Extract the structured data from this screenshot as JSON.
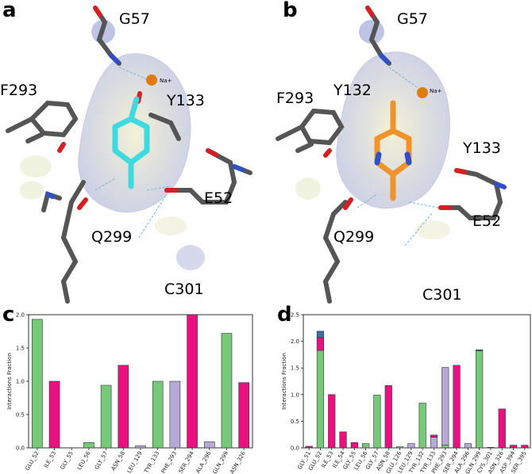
{
  "panels": {
    "a": "a",
    "b": "b",
    "c": "c",
    "d": "d"
  },
  "structure_a": {
    "labels": {
      "g57": "G57",
      "f293": "F293",
      "y133": "Y133",
      "e52": "E52",
      "q299": "Q299",
      "c301": "C301",
      "na": "Na+"
    },
    "ligand_color": "#3fd9e0"
  },
  "structure_b": {
    "labels": {
      "g57": "G57",
      "f293": "F293",
      "y132": "Y132",
      "y133": "Y133",
      "e52": "E52",
      "q299": "Q299",
      "c301": "C301",
      "na": "Na+"
    },
    "ligand_color": "#f0932b"
  },
  "colors": {
    "green": "#77c97a",
    "magenta": "#e8117f",
    "lavender": "#b7a9d6",
    "blue": "#3a6ea5",
    "sodium": "#e07b10"
  },
  "chart_data": [
    {
      "type": "bar",
      "panel": "c",
      "ylabel": "Interactions Fraction",
      "ylim": [
        0,
        2.0
      ],
      "yticks": [
        "0.0",
        "0.5",
        "1.0",
        "1.5",
        "2.0"
      ],
      "categories": [
        "GLU_52",
        "ILE_53",
        "GLY_55",
        "LEU_56",
        "GLY_57",
        "ASN_58",
        "LEU_129",
        "TYR_133",
        "PHE_293",
        "SER_294",
        "ALA_296",
        "GLN_299",
        "ASN_326"
      ],
      "values": [
        1.93,
        1.0,
        0.0,
        0.08,
        0.94,
        1.24,
        0.03,
        1.0,
        1.0,
        2.0,
        0.09,
        1.72,
        0.98
      ],
      "colors": [
        "green",
        "magenta",
        "green",
        "green",
        "green",
        "magenta",
        "lavender",
        "green",
        "lavender",
        "magenta",
        "lavender",
        "green",
        "magenta"
      ]
    },
    {
      "type": "bar",
      "panel": "d",
      "ylabel": "Interactions Fraction",
      "ylim": [
        0,
        2.5
      ],
      "yticks": [
        "0.0",
        "0.5",
        "1.0",
        "1.5",
        "2.0",
        "2.5"
      ],
      "categories": [
        "GLY_51",
        "GLU_52",
        "ILE_53",
        "ILE_54",
        "GLY_55",
        "LEU_56",
        "GLY_57",
        "ASN_58",
        "GLU_126",
        "LEU_129",
        "TYR_132",
        "TYR_133",
        "PHE_293",
        "SER_294",
        "ALA_296",
        "GLN_299",
        "CYS_301",
        "ASN_326",
        "ASP_394",
        "SER_395"
      ],
      "stacks": [
        [
          [
            "magenta",
            0.03
          ]
        ],
        [
          [
            "green",
            1.83
          ],
          [
            "magenta",
            0.24
          ],
          [
            "blue",
            0.12
          ]
        ],
        [
          [
            "magenta",
            1.0
          ]
        ],
        [
          [
            "magenta",
            0.3
          ]
        ],
        [
          [
            "magenta",
            0.1
          ]
        ],
        [
          [
            "green",
            0.08
          ]
        ],
        [
          [
            "green",
            0.99
          ]
        ],
        [
          [
            "magenta",
            1.17
          ]
        ],
        [
          [
            "green",
            0.02
          ]
        ],
        [
          [
            "lavender",
            0.08
          ]
        ],
        [
          [
            "green",
            0.84
          ]
        ],
        [
          [
            "lavender",
            0.2
          ],
          [
            "magenta",
            0.04
          ]
        ],
        [
          [
            "green",
            0.05
          ],
          [
            "lavender",
            1.46
          ]
        ],
        [
          [
            "magenta",
            1.55
          ]
        ],
        [
          [
            "lavender",
            0.08
          ]
        ],
        [
          [
            "green",
            1.82
          ],
          [
            "blue",
            0.02
          ]
        ],
        [
          [
            "green",
            0.01
          ]
        ],
        [
          [
            "magenta",
            0.73
          ]
        ],
        [
          [
            "magenta",
            0.05
          ]
        ],
        [
          [
            "magenta",
            0.05
          ]
        ]
      ]
    }
  ]
}
